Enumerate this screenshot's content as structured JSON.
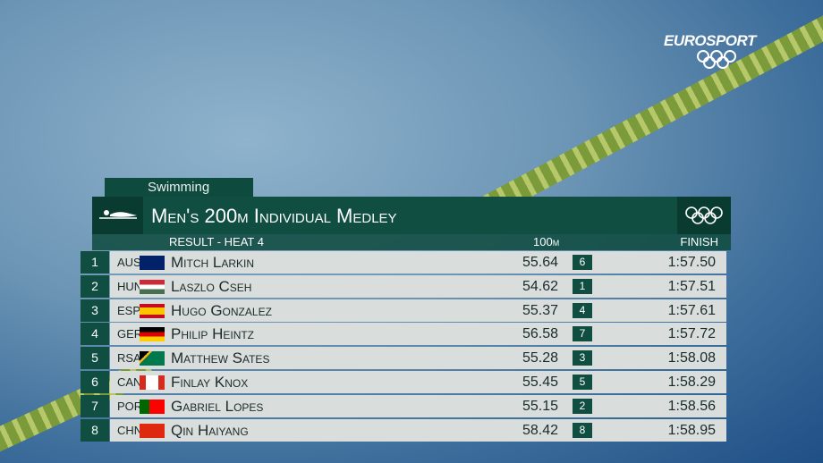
{
  "brand": "EUROSPORT",
  "header": {
    "sport": "Swimming",
    "title": "Men's 200m Individual Medley",
    "subtitle": "RESULT - HEAT 4"
  },
  "table": {
    "columns": [
      "100m",
      "FINISH"
    ],
    "rows": [
      [
        "1",
        "AUS",
        "Mitch Larkin",
        "55.64",
        "6",
        "1:57.50"
      ],
      [
        "2",
        "HUN",
        "Laszlo Cseh",
        "54.62",
        "1",
        "1:57.51"
      ],
      [
        "3",
        "ESP",
        "Hugo Gonzalez",
        "55.37",
        "4",
        "1:57.61"
      ],
      [
        "4",
        "GER",
        "Philip Heintz",
        "56.58",
        "7",
        "1:57.72"
      ],
      [
        "5",
        "RSA",
        "Matthew Sates",
        "55.28",
        "3",
        "1:58.08"
      ],
      [
        "6",
        "CAN",
        "Finlay Knox",
        "55.45",
        "5",
        "1:58.29"
      ],
      [
        "7",
        "POR",
        "Gabriel Lopes",
        "55.15",
        "2",
        "1:58.56"
      ],
      [
        "8",
        "CHN",
        "Qin Haiyang",
        "58.42",
        "8",
        "1:58.95"
      ]
    ]
  }
}
